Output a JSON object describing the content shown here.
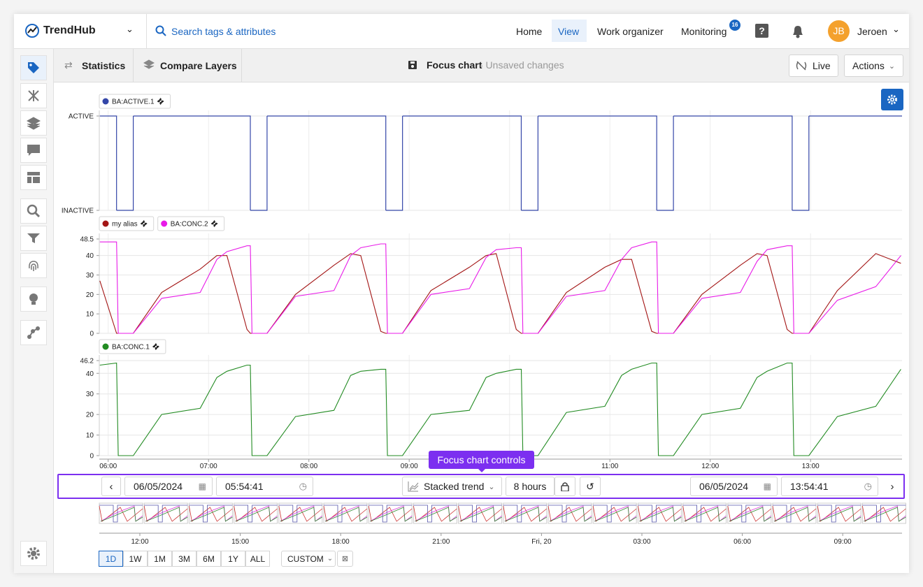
{
  "topbar": {
    "brand": "TrendHub",
    "search": "Search tags & attributes",
    "nav": [
      "Home",
      "View",
      "Work organizer",
      "Monitoring"
    ],
    "badge": "16",
    "avatar": "JB",
    "user": "Jeroen"
  },
  "toolbar": {
    "tabs": [
      "Statistics",
      "Compare Layers"
    ],
    "title": "Focus chart",
    "status": "- Unsaved changes",
    "buttons": [
      "Live",
      "Actions"
    ]
  },
  "chart_data": [
    {
      "type": "step",
      "xlim": [
        "05:54:41",
        "13:54:41"
      ],
      "ylim": [
        0,
        1
      ],
      "yticks": [
        {
          "value": 0,
          "label": "INACTIVE"
        },
        {
          "value": 1,
          "label": "ACTIVE"
        }
      ],
      "grid": true,
      "x": [
        "05:55",
        "06:05",
        "06:15",
        "07:25",
        "07:35",
        "08:46",
        "08:56",
        "10:07",
        "10:17",
        "11:28",
        "11:38",
        "12:49",
        "12:59"
      ],
      "series": [
        {
          "name": "BA:ACTIVE.1",
          "color": "#3446a8",
          "values": [
            1,
            0,
            1,
            0,
            1,
            0,
            1,
            0,
            1,
            0,
            1,
            0,
            1
          ]
        }
      ]
    },
    {
      "type": "line",
      "xlim": [
        "05:54:41",
        "13:54:41"
      ],
      "ylim": [
        0,
        48.5
      ],
      "yticks": [
        0,
        10,
        20,
        30,
        40,
        48.5
      ],
      "grid": true,
      "x": [
        "05:55",
        "06:05",
        "06:06",
        "06:15",
        "06:32",
        "06:55",
        "07:05",
        "07:11",
        "07:23",
        "07:25",
        "07:26",
        "07:35",
        "07:52",
        "08:15",
        "08:25",
        "08:31",
        "08:43",
        "08:46",
        "08:47",
        "08:56",
        "09:13",
        "09:36",
        "09:46",
        "09:52",
        "10:04",
        "10:07",
        "10:08",
        "10:17",
        "10:34",
        "10:57",
        "11:07",
        "11:13",
        "11:25",
        "11:28",
        "11:29",
        "11:38",
        "11:55",
        "12:18",
        "12:28",
        "12:34",
        "12:46",
        "12:49",
        "12:50",
        "12:59",
        "13:16",
        "13:39",
        "13:54"
      ],
      "series": [
        {
          "name": "my alias",
          "color": "#a31515",
          "values": [
            27,
            0,
            0,
            0,
            21,
            33,
            40,
            40,
            2,
            0,
            0,
            0,
            20,
            35,
            41,
            40,
            1,
            0,
            0,
            0,
            22,
            34,
            40,
            41,
            2,
            0,
            0,
            0,
            21,
            34,
            38,
            38,
            1,
            0,
            0,
            0,
            20,
            35,
            41,
            40,
            2,
            0,
            0,
            0,
            22,
            41,
            36
          ]
        },
        {
          "name": "BA:CONC.2",
          "color": "#e81ae8",
          "values": [
            47,
            47,
            0,
            0,
            18,
            21,
            38,
            42,
            45,
            45,
            0,
            0,
            19,
            22,
            40,
            44,
            46,
            46,
            0,
            0,
            20,
            23,
            39,
            43,
            44,
            44,
            0,
            0,
            19,
            22,
            38,
            44,
            47,
            47,
            0,
            0,
            18,
            21,
            37,
            43,
            45,
            45,
            0,
            0,
            17,
            24,
            40
          ]
        }
      ]
    },
    {
      "type": "line",
      "xlim": [
        "05:54:41",
        "13:54:41"
      ],
      "ylim": [
        0,
        46.2
      ],
      "yticks": [
        0,
        10,
        20,
        30,
        40,
        46.2
      ],
      "grid": true,
      "xticks": [
        "06:00",
        "07:00",
        "08:00",
        "09:00",
        "10:00",
        "11:00",
        "12:00",
        "13:00"
      ],
      "x": [
        "05:55",
        "06:05",
        "06:06",
        "06:15",
        "06:32",
        "06:55",
        "07:05",
        "07:11",
        "07:23",
        "07:25",
        "07:26",
        "07:35",
        "07:52",
        "08:15",
        "08:25",
        "08:31",
        "08:43",
        "08:46",
        "08:47",
        "08:56",
        "09:13",
        "09:36",
        "09:46",
        "09:52",
        "10:04",
        "10:07",
        "10:08",
        "10:17",
        "10:34",
        "10:57",
        "11:07",
        "11:13",
        "11:25",
        "11:28",
        "11:29",
        "11:38",
        "11:55",
        "12:18",
        "12:28",
        "12:34",
        "12:46",
        "12:49",
        "12:50",
        "12:59",
        "13:16",
        "13:39",
        "13:54"
      ],
      "series": [
        {
          "name": "BA:CONC.1",
          "color": "#228b22",
          "values": [
            44,
            45,
            0,
            0,
            20,
            23,
            38,
            41,
            44,
            44,
            0,
            0,
            19,
            22,
            39,
            41,
            42,
            42,
            0,
            0,
            20,
            22,
            38,
            40,
            42,
            42,
            0,
            0,
            21,
            24,
            39,
            42,
            45,
            45,
            0,
            0,
            20,
            23,
            38,
            41,
            45,
            45,
            0,
            0,
            19,
            24,
            42
          ]
        }
      ]
    }
  ],
  "controls": {
    "tooltip": "Focus chart controls",
    "start_date": "06/05/2024",
    "start_time": "05:54:41",
    "mode": "Stacked trend",
    "duration": "8 hours",
    "end_date": "06/05/2024",
    "end_time": "13:54:41"
  },
  "navigator": {
    "ticks": [
      "12:00",
      "15:00",
      "18:00",
      "21:00",
      "Fri, 20",
      "03:00",
      "06:00",
      "09:00"
    ],
    "ranges": [
      "1D",
      "1W",
      "1M",
      "3M",
      "6M",
      "1Y",
      "ALL"
    ],
    "custom": "CUSTOM"
  }
}
